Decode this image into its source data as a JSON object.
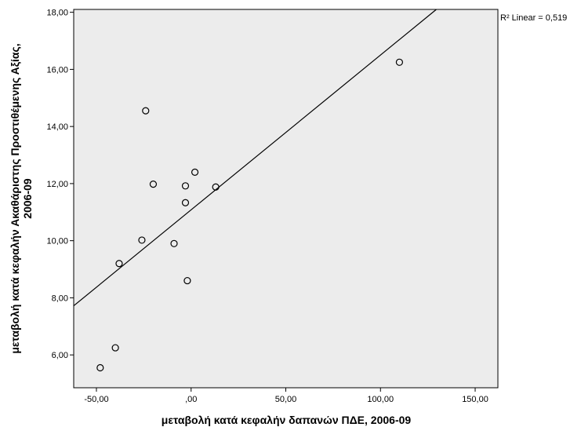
{
  "chart_data": {
    "type": "scatter",
    "title": "",
    "xlabel": "μεταβολή κατά κεφαλήν δαπανών ΠΔΕ, 2006-09",
    "ylabel_line1": "μεταβολή κατά κεφαλήν Ακαθάριστης Προστιθέμενης Αξίας,",
    "ylabel_line2": "2006-09",
    "xlim": [
      -62,
      162
    ],
    "ylim": [
      4.85,
      18.1
    ],
    "x_ticks": [
      -50,
      0,
      50,
      100,
      150
    ],
    "x_tick_labels": [
      "-50,00",
      ",00",
      "50,00",
      "100,00",
      "150,00"
    ],
    "y_ticks": [
      6,
      8,
      10,
      12,
      14,
      16,
      18
    ],
    "y_tick_labels": [
      "6,00",
      "8,00",
      "10,00",
      "12,00",
      "14,00",
      "16,00",
      "18,00"
    ],
    "points": [
      {
        "x": -48,
        "y": 5.55
      },
      {
        "x": -40,
        "y": 6.25
      },
      {
        "x": -38,
        "y": 9.2
      },
      {
        "x": -26,
        "y": 10.02
      },
      {
        "x": -24,
        "y": 14.55
      },
      {
        "x": -20,
        "y": 11.98
      },
      {
        "x": -9,
        "y": 9.9
      },
      {
        "x": -3,
        "y": 11.33
      },
      {
        "x": -3,
        "y": 11.92
      },
      {
        "x": -2,
        "y": 8.6
      },
      {
        "x": 2,
        "y": 12.4
      },
      {
        "x": 13,
        "y": 11.88
      },
      {
        "x": 110,
        "y": 16.25
      }
    ],
    "fit_line": {
      "x1": -62,
      "y1": 7.72,
      "x2": 129.5,
      "y2": 18.1
    },
    "fit_label": "R² Linear = 0,519",
    "grid": false,
    "colors": {
      "plot_bg": "#ececec",
      "marker": "#000000",
      "line": "#000000"
    }
  }
}
